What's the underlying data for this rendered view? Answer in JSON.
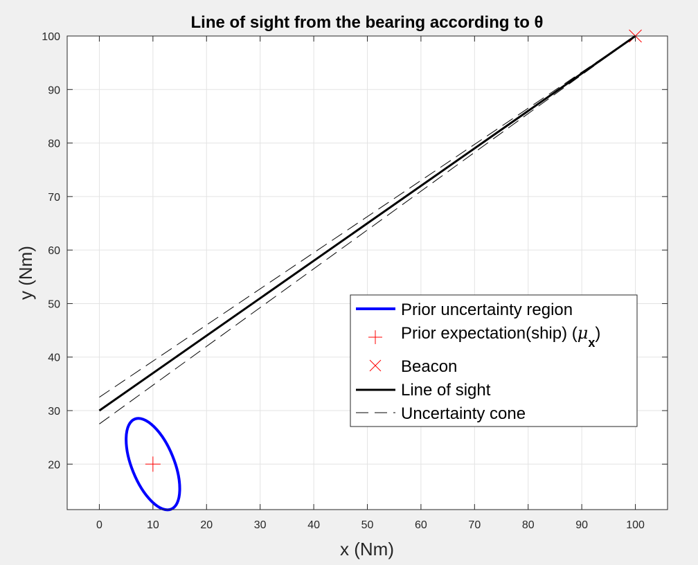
{
  "chart_data": {
    "type": "line",
    "title": "Line of sight from the bearing according to θ",
    "xlabel": "x (Nm)",
    "ylabel": "y (Nm)",
    "xlim": [
      -6,
      106
    ],
    "ylim": [
      11.5,
      100
    ],
    "xticks": [
      0,
      10,
      20,
      30,
      40,
      50,
      60,
      70,
      80,
      90,
      100
    ],
    "yticks": [
      20,
      30,
      40,
      50,
      60,
      70,
      80,
      90,
      100
    ],
    "grid": true,
    "legend_position": "lower-right",
    "series": [
      {
        "name": "Prior uncertainty region",
        "kind": "ellipse",
        "color": "#0000ff",
        "center": [
          10,
          20
        ],
        "x_extent": [
          5,
          15
        ],
        "y_extent": [
          11.5,
          28.5
        ]
      },
      {
        "name": "Prior expectation(ship) (μx)",
        "kind": "marker-plus",
        "color": "#ff0000",
        "points": [
          [
            10,
            20
          ]
        ]
      },
      {
        "name": "Beacon",
        "kind": "marker-x",
        "color": "#ff0000",
        "points": [
          [
            100,
            100
          ]
        ]
      },
      {
        "name": "Line of sight",
        "kind": "solid-line",
        "color": "#000000",
        "points": [
          [
            0,
            30
          ],
          [
            100,
            100
          ]
        ]
      },
      {
        "name": "Uncertainty cone",
        "kind": "dashed-line",
        "color": "#000000",
        "lines": [
          [
            [
              0,
              32.5
            ],
            [
              100,
              100
            ]
          ],
          [
            [
              0,
              27.5
            ],
            [
              100,
              100
            ]
          ]
        ]
      }
    ],
    "legend": {
      "entries": [
        {
          "label": "Prior uncertainty region"
        },
        {
          "label_main": "Prior expectation(ship) (",
          "label_mu": "μ",
          "label_sub": "x",
          "label_end": ")"
        },
        {
          "label": "Beacon"
        },
        {
          "label": "Line of sight"
        },
        {
          "label": "Uncertainty cone"
        }
      ]
    }
  }
}
